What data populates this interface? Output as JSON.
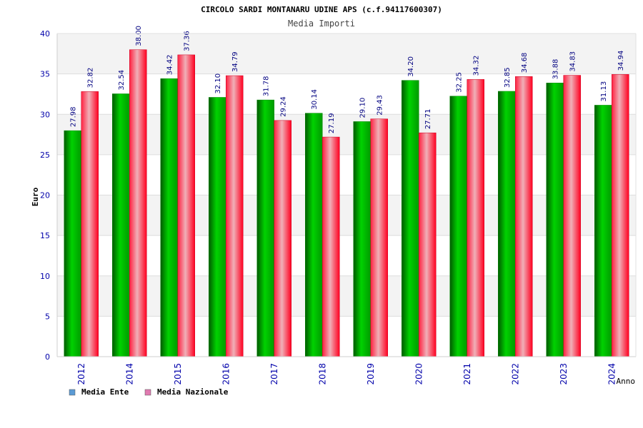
{
  "chart_data": {
    "type": "bar",
    "title": "CIRCOLO SARDI MONTANARU UDINE APS (c.f.94117600307)",
    "subtitle": "Media Importi",
    "ylabel": "Euro",
    "xlabel": "Anno",
    "ylim": [
      0,
      40
    ],
    "yticks": [
      0,
      5,
      10,
      15,
      20,
      25,
      30,
      35,
      40
    ],
    "categories": [
      "2012",
      "2014",
      "2015",
      "2016",
      "2017",
      "2018",
      "2019",
      "2020",
      "2021",
      "2022",
      "2023",
      "2024"
    ],
    "series": [
      {
        "name": "Media Ente",
        "values": [
          27.98,
          32.54,
          34.42,
          32.1,
          31.78,
          30.14,
          29.1,
          34.2,
          32.25,
          32.85,
          33.88,
          31.13
        ],
        "labels": [
          "27.98",
          "32.54",
          "34.42",
          "32.10",
          "31.78",
          "30.14",
          "29.10",
          "34.20",
          "32.25",
          "32.85",
          "33.88",
          "31.13"
        ],
        "color": "#00b000",
        "legend_color": "#5b9bd5"
      },
      {
        "name": "Media Nazionale",
        "values": [
          32.82,
          38.0,
          37.36,
          34.79,
          29.24,
          27.19,
          29.43,
          27.71,
          34.32,
          34.68,
          34.83,
          34.94
        ],
        "labels": [
          "32.82",
          "38.00",
          "37.36",
          "34.79",
          "29.24",
          "27.19",
          "29.43",
          "27.71",
          "34.32",
          "34.68",
          "34.83",
          "34.94"
        ],
        "color": "#ff0020",
        "legend_color": "#e07ab0"
      }
    ],
    "grid": true,
    "legend_position": "bottom-left"
  }
}
